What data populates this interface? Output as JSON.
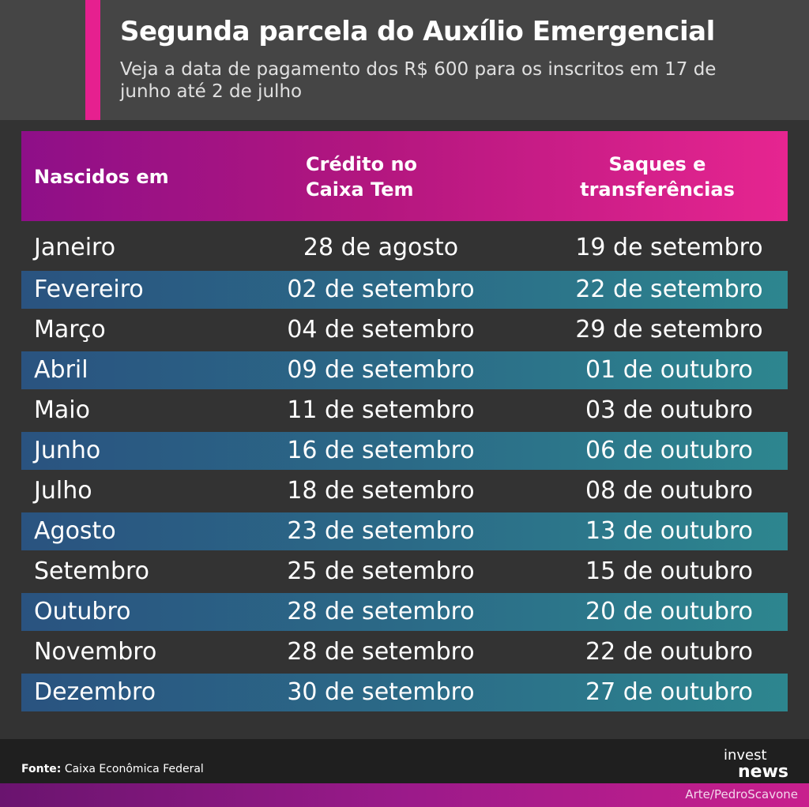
{
  "header": {
    "title": "Segunda parcela do Auxílio Emergencial",
    "subtitle": "Veja a data de pagamento dos R$ 600 para os inscritos em 17 de junho até 2 de julho",
    "accent_color": "#e6208f"
  },
  "table": {
    "headers": {
      "born": "Nascidos em",
      "credit": "Crédito no Caixa Tem",
      "cash": "Saques e transferências"
    },
    "rows": [
      {
        "month": "Janeiro",
        "credit": "28 de agosto",
        "cash": "19 de setembro"
      },
      {
        "month": "Fevereiro",
        "credit": "02 de setembro",
        "cash": "22 de setembro"
      },
      {
        "month": "Março",
        "credit": "04 de setembro",
        "cash": "29 de setembro"
      },
      {
        "month": "Abril",
        "credit": "09 de setembro",
        "cash": "01 de outubro"
      },
      {
        "month": "Maio",
        "credit": "11 de setembro",
        "cash": "03 de outubro"
      },
      {
        "month": "Junho",
        "credit": "16 de setembro",
        "cash": "06 de outubro"
      },
      {
        "month": "Julho",
        "credit": "18 de setembro",
        "cash": "08 de outubro"
      },
      {
        "month": "Agosto",
        "credit": "23 de setembro",
        "cash": "13 de outubro"
      },
      {
        "month": "Setembro",
        "credit": "25 de setembro",
        "cash": "15 de outubro"
      },
      {
        "month": "Outubro",
        "credit": "28 de setembro",
        "cash": "20 de outubro"
      },
      {
        "month": "Novembro",
        "credit": "28 de setembro",
        "cash": "22 de outubro"
      },
      {
        "month": "Dezembro",
        "credit": "30 de setembro",
        "cash": "27 de outubro"
      }
    ]
  },
  "footer": {
    "source_label": "Fonte:",
    "source_text": "Caixa Econômica Federal",
    "logo_line1": "invest",
    "logo_line2": "news",
    "art_credit": "Arte/PedroScavone"
  }
}
